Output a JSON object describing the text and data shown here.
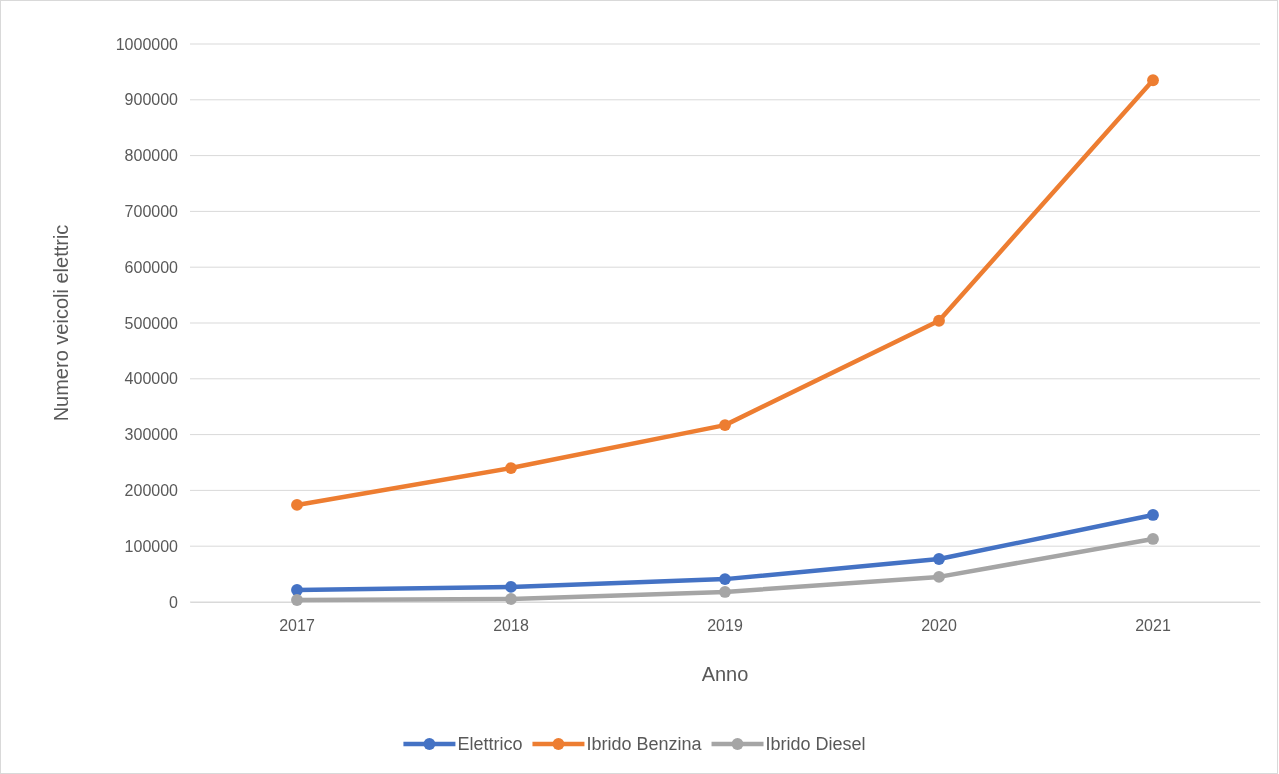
{
  "chart_data": {
    "type": "line",
    "xlabel": "Anno",
    "ylabel": "Numero veicoli elettric",
    "categories": [
      "2017",
      "2018",
      "2019",
      "2020",
      "2021"
    ],
    "series": [
      {
        "name": "Elettrico",
        "color": "#4472c4",
        "values": [
          21500,
          27000,
          41000,
          77000,
          156000
        ]
      },
      {
        "name": "Ibrido Benzina",
        "color": "#ed7d31",
        "values": [
          174000,
          240000,
          317000,
          504000,
          935000
        ]
      },
      {
        "name": "Ibrido Diesel",
        "color": "#a5a5a5",
        "values": [
          3600,
          5400,
          18000,
          45000,
          113000
        ]
      }
    ],
    "ylim": [
      0,
      1000000
    ],
    "yticks": [
      0,
      100000,
      200000,
      300000,
      400000,
      500000,
      600000,
      700000,
      800000,
      900000,
      1000000
    ],
    "grid": "y",
    "legend": "bottom",
    "marker": "circle",
    "line_style": "solid"
  }
}
